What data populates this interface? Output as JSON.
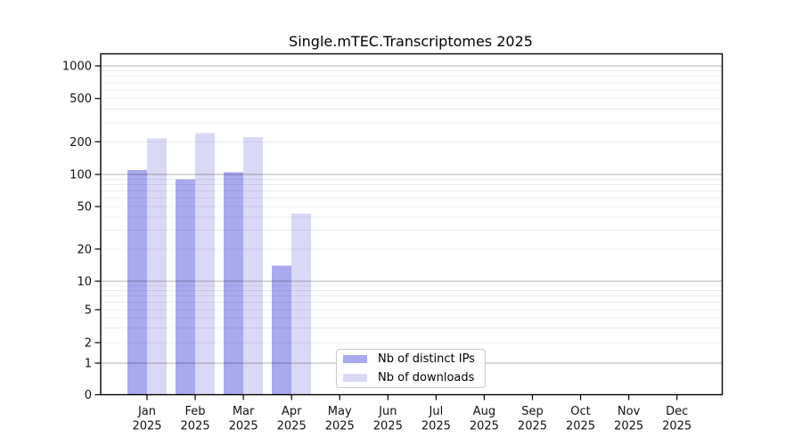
{
  "figure": {
    "background": "#ffffff",
    "axis_color": "#000000",
    "major_grid_color": "#b0b0b0",
    "minor_grid_color": "#ececec"
  },
  "chart_data": {
    "type": "bar",
    "title": "Single.mTEC.Transcriptomes 2025",
    "categories": [
      "Jan 2025",
      "Feb 2025",
      "Mar 2025",
      "Apr 2025",
      "May 2025",
      "Jun 2025",
      "Jul 2025",
      "Aug 2025",
      "Sep 2025",
      "Oct 2025",
      "Nov 2025",
      "Dec 2025"
    ],
    "series": [
      {
        "name": "Nb of distinct IPs",
        "color": "#a9a9ee",
        "values": [
          110,
          90,
          105,
          14,
          0,
          0,
          0,
          0,
          0,
          0,
          0,
          0
        ]
      },
      {
        "name": "Nb of downloads",
        "color": "#d9d9f7",
        "values": [
          215,
          240,
          220,
          43,
          0,
          0,
          0,
          0,
          0,
          0,
          0,
          0
        ]
      }
    ],
    "y_ticks": [
      0,
      1,
      2,
      5,
      10,
      20,
      50,
      100,
      200,
      500,
      1000
    ],
    "y_scale": "log-like (linear 0-1, compressed 1-10, log above 10)",
    "ylim": [
      0,
      1200
    ],
    "xlabel": "",
    "ylabel": "",
    "grid": "horizontal, major + minor",
    "legend_position": "lower center"
  }
}
